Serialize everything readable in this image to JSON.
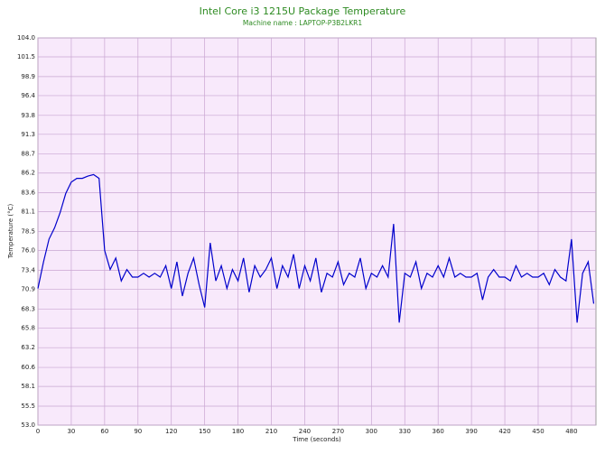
{
  "chart_data": {
    "type": "line",
    "title": "Intel Core i3 1215U Package Temperature",
    "subtitle": "Machine name : LAPTOP-P3B2LKR1",
    "xlabel": "Time (seconds)",
    "ylabel": "Temperature (°C)",
    "xlim": [
      0,
      502
    ],
    "ylim": [
      53,
      104
    ],
    "xticks": [
      0,
      30,
      60,
      90,
      120,
      150,
      180,
      210,
      240,
      270,
      300,
      330,
      360,
      390,
      420,
      450,
      480
    ],
    "yticks": [
      {
        "value": 104,
        "label": "104.0"
      },
      {
        "value": 101.5,
        "label": "101.5"
      },
      98.9,
      96.4,
      93.8,
      91.3,
      88.7,
      86.2,
      83.6,
      81.1,
      78.5,
      {
        "value": 76,
        "label": "76.0"
      },
      73.4,
      70.9,
      68.3,
      65.8,
      63.2,
      60.6,
      58.1,
      55.5,
      {
        "value": 53,
        "label": "53.0"
      }
    ],
    "grid": true,
    "x": [
      0,
      5,
      10,
      15,
      20,
      25,
      30,
      35,
      40,
      45,
      50,
      55,
      60,
      65,
      70,
      75,
      80,
      85,
      90,
      95,
      100,
      105,
      110,
      115,
      120,
      125,
      130,
      135,
      140,
      145,
      150,
      155,
      160,
      165,
      170,
      175,
      180,
      185,
      190,
      195,
      200,
      205,
      210,
      215,
      220,
      225,
      230,
      235,
      240,
      245,
      250,
      255,
      260,
      265,
      270,
      275,
      280,
      285,
      290,
      295,
      300,
      305,
      310,
      315,
      320,
      325,
      330,
      335,
      340,
      345,
      350,
      355,
      360,
      365,
      370,
      375,
      380,
      385,
      390,
      395,
      400,
      405,
      410,
      415,
      420,
      425,
      430,
      435,
      440,
      445,
      450,
      455,
      460,
      465,
      470,
      475,
      480,
      485,
      490,
      495,
      500
    ],
    "series": [
      {
        "color": "#0000cc",
        "values": [
          71,
          74.5,
          77.5,
          79,
          81,
          83.5,
          85,
          85.5,
          85.5,
          85.8,
          86,
          85.5,
          76,
          73.5,
          75,
          72,
          73.5,
          72.5,
          72.5,
          73,
          72.5,
          73,
          72.5,
          74,
          71,
          74.5,
          70,
          73,
          75,
          71.5,
          68.5,
          77,
          72,
          74,
          71,
          73.5,
          72,
          75,
          70.5,
          74,
          72.5,
          73.5,
          75,
          71,
          74,
          72.5,
          75.5,
          71,
          74,
          72,
          75,
          70.5,
          73,
          72.5,
          74.5,
          71.5,
          73,
          72.5,
          75,
          71,
          73,
          72.5,
          74,
          72.5,
          79.5,
          66.5,
          73,
          72.5,
          74.5,
          71,
          73,
          72.5,
          74,
          72.5,
          75,
          72.5,
          73,
          72.5,
          72.5,
          73,
          69.5,
          72.5,
          73.5,
          72.5,
          72.5,
          72,
          74,
          72.5,
          73,
          72.5,
          72.5,
          73,
          71.5,
          73.5,
          72.5,
          72,
          77.5,
          66.5,
          73,
          74.5,
          69
        ]
      }
    ]
  }
}
